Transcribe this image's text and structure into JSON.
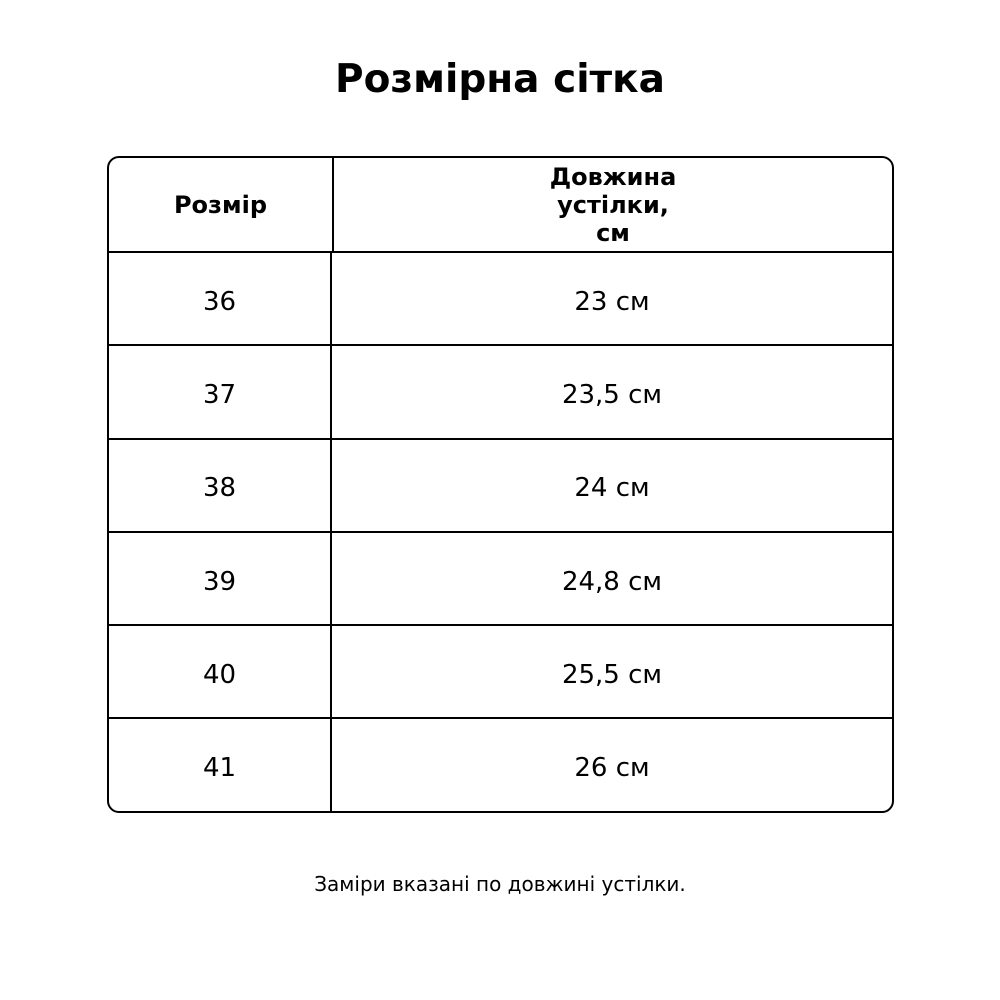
{
  "title": "Розмірна сітка",
  "table": {
    "headers": [
      "Розмір",
      "Довжина устілки, см"
    ],
    "header_lines": [
      "Довжина",
      "устілки,",
      "см"
    ],
    "rows": [
      [
        "36",
        "23 см"
      ],
      [
        "37",
        "23,5 см"
      ],
      [
        "38",
        "24 см"
      ],
      [
        "39",
        "24,8 см"
      ],
      [
        "40",
        "25,5 см"
      ],
      [
        "41",
        "26 см"
      ]
    ]
  },
  "note": "Заміри вказані по довжині устілки."
}
